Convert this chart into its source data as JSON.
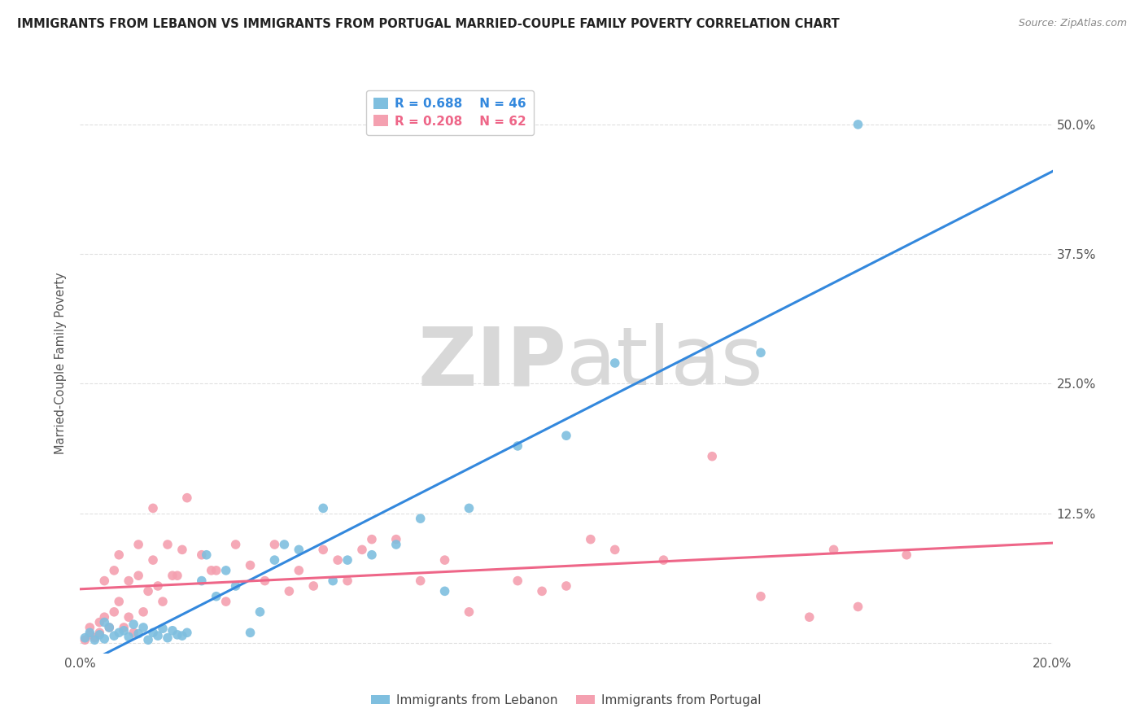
{
  "title": "IMMIGRANTS FROM LEBANON VS IMMIGRANTS FROM PORTUGAL MARRIED-COUPLE FAMILY POVERTY CORRELATION CHART",
  "source": "Source: ZipAtlas.com",
  "ylabel": "Married-Couple Family Poverty",
  "xlim": [
    0.0,
    0.2
  ],
  "ylim": [
    -0.01,
    0.55
  ],
  "xtick_positions": [
    0.0,
    0.05,
    0.1,
    0.15,
    0.2
  ],
  "xtick_labels": [
    "0.0%",
    "",
    "",
    "",
    "20.0%"
  ],
  "ytick_positions": [
    0.0,
    0.125,
    0.25,
    0.375,
    0.5
  ],
  "ytick_labels": [
    "",
    "12.5%",
    "25.0%",
    "37.5%",
    "50.0%"
  ],
  "lebanon_color": "#7fbfdf",
  "portugal_color": "#f4a0b0",
  "lebanon_line_color": "#3388dd",
  "portugal_line_color": "#ee6688",
  "lebanon_R": 0.688,
  "lebanon_N": 46,
  "portugal_R": 0.208,
  "portugal_N": 62,
  "lebanon_scatter_x": [
    0.001,
    0.002,
    0.003,
    0.004,
    0.005,
    0.005,
    0.006,
    0.007,
    0.008,
    0.009,
    0.01,
    0.011,
    0.012,
    0.013,
    0.014,
    0.015,
    0.016,
    0.017,
    0.018,
    0.019,
    0.02,
    0.021,
    0.022,
    0.025,
    0.026,
    0.028,
    0.03,
    0.032,
    0.035,
    0.037,
    0.04,
    0.042,
    0.045,
    0.05,
    0.052,
    0.055,
    0.06,
    0.065,
    0.07,
    0.075,
    0.08,
    0.09,
    0.1,
    0.11,
    0.14,
    0.16
  ],
  "lebanon_scatter_y": [
    0.005,
    0.01,
    0.003,
    0.008,
    0.02,
    0.004,
    0.015,
    0.007,
    0.01,
    0.012,
    0.006,
    0.018,
    0.009,
    0.015,
    0.003,
    0.01,
    0.007,
    0.014,
    0.005,
    0.012,
    0.008,
    0.007,
    0.01,
    0.06,
    0.085,
    0.045,
    0.07,
    0.055,
    0.01,
    0.03,
    0.08,
    0.095,
    0.09,
    0.13,
    0.06,
    0.08,
    0.085,
    0.095,
    0.12,
    0.05,
    0.13,
    0.19,
    0.2,
    0.27,
    0.28,
    0.5
  ],
  "portugal_scatter_x": [
    0.001,
    0.002,
    0.002,
    0.003,
    0.004,
    0.004,
    0.005,
    0.005,
    0.006,
    0.007,
    0.007,
    0.008,
    0.008,
    0.009,
    0.01,
    0.01,
    0.011,
    0.012,
    0.012,
    0.013,
    0.014,
    0.015,
    0.015,
    0.016,
    0.017,
    0.018,
    0.019,
    0.02,
    0.021,
    0.022,
    0.025,
    0.027,
    0.028,
    0.03,
    0.032,
    0.035,
    0.038,
    0.04,
    0.043,
    0.045,
    0.048,
    0.05,
    0.053,
    0.055,
    0.058,
    0.06,
    0.065,
    0.07,
    0.075,
    0.08,
    0.09,
    0.095,
    0.1,
    0.105,
    0.11,
    0.12,
    0.13,
    0.14,
    0.15,
    0.155,
    0.16,
    0.17
  ],
  "portugal_scatter_y": [
    0.003,
    0.008,
    0.015,
    0.005,
    0.01,
    0.02,
    0.025,
    0.06,
    0.015,
    0.03,
    0.07,
    0.04,
    0.085,
    0.015,
    0.025,
    0.06,
    0.01,
    0.065,
    0.095,
    0.03,
    0.05,
    0.08,
    0.13,
    0.055,
    0.04,
    0.095,
    0.065,
    0.065,
    0.09,
    0.14,
    0.085,
    0.07,
    0.07,
    0.04,
    0.095,
    0.075,
    0.06,
    0.095,
    0.05,
    0.07,
    0.055,
    0.09,
    0.08,
    0.06,
    0.09,
    0.1,
    0.1,
    0.06,
    0.08,
    0.03,
    0.06,
    0.05,
    0.055,
    0.1,
    0.09,
    0.08,
    0.18,
    0.045,
    0.025,
    0.09,
    0.035,
    0.085
  ],
  "watermark_zip": "ZIP",
  "watermark_atlas": "atlas",
  "background_color": "#ffffff",
  "grid_color": "#e0e0e0",
  "legend_label_lebanon": "Immigrants from Lebanon",
  "legend_label_portugal": "Immigrants from Portugal"
}
